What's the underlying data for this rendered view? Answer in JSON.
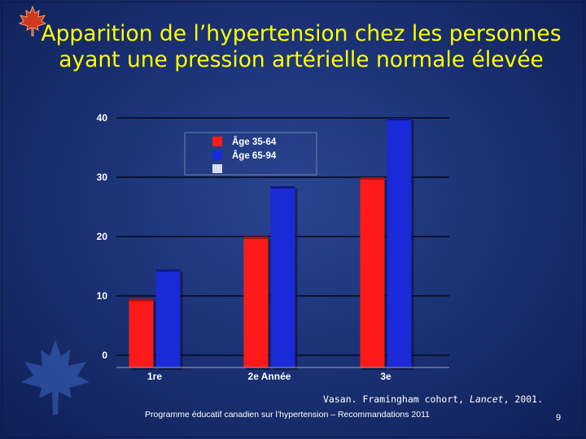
{
  "slide": {
    "title": "Apparition de l’hypertension chez les personnes ayant une pression artérielle normale élevée",
    "reference_text": "Vasan. Framingham cohort, ",
    "reference_journal": "Lancet",
    "reference_year": ", 2001.",
    "footer": "Programme éducatif canadien sur l’hypertension – Recommandations 2011",
    "page_number": "9",
    "logo_icon": "maple-leaf-icon",
    "watermark_icon": "maple-leaf-icon"
  },
  "chart_data": {
    "type": "bar",
    "categories": [
      "1re",
      "2e Année",
      "3e"
    ],
    "series": [
      {
        "name": "Âge 35-64",
        "color": "#ff1a1a",
        "values": [
          9.5,
          20,
          30
        ]
      },
      {
        "name": "Âge 65-94",
        "color": "#1a2ad8",
        "values": [
          14.5,
          28.5,
          40
        ]
      }
    ],
    "legend_extra_swatch_color": "#d8dcf4",
    "yticks": [
      0,
      10,
      20,
      30,
      40
    ],
    "ylim": [
      0,
      40
    ],
    "grid": true,
    "legend_position": "top-left"
  }
}
